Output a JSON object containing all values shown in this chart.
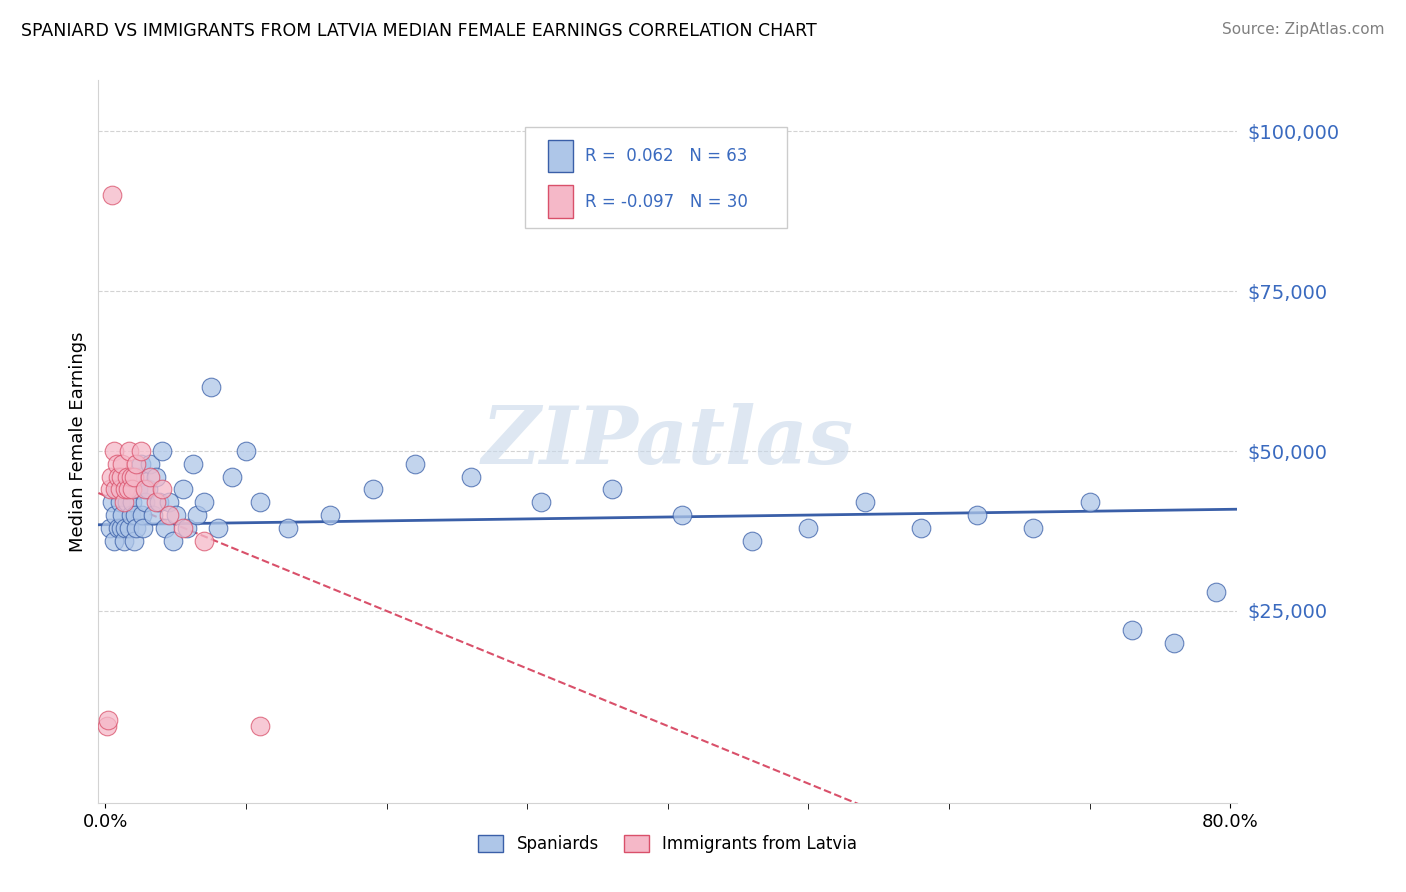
{
  "title": "SPANIARD VS IMMIGRANTS FROM LATVIA MEDIAN FEMALE EARNINGS CORRELATION CHART",
  "source": "Source: ZipAtlas.com",
  "ylabel": "Median Female Earnings",
  "xlim": [
    -0.005,
    0.805
  ],
  "ylim": [
    -5000,
    108000
  ],
  "legend_r_blue": "0.062",
  "legend_n_blue": "63",
  "legend_r_pink": "-0.097",
  "legend_n_pink": "30",
  "blue_color": "#aec6e8",
  "pink_color": "#f5b8c8",
  "blue_line_color": "#3a5fa8",
  "pink_line_color": "#d9506a",
  "watermark": "ZIPatlas",
  "ytick_vals": [
    25000,
    50000,
    75000,
    100000
  ],
  "ytick_labels": [
    "$25,000",
    "$50,000",
    "$75,000",
    "$100,000"
  ],
  "spaniards_x": [
    0.003,
    0.005,
    0.006,
    0.007,
    0.008,
    0.009,
    0.01,
    0.011,
    0.012,
    0.013,
    0.014,
    0.015,
    0.016,
    0.017,
    0.018,
    0.019,
    0.02,
    0.021,
    0.022,
    0.023,
    0.024,
    0.025,
    0.026,
    0.027,
    0.028,
    0.03,
    0.032,
    0.034,
    0.036,
    0.038,
    0.04,
    0.042,
    0.045,
    0.048,
    0.05,
    0.055,
    0.058,
    0.062,
    0.065,
    0.07,
    0.075,
    0.08,
    0.09,
    0.1,
    0.11,
    0.13,
    0.16,
    0.19,
    0.22,
    0.26,
    0.31,
    0.36,
    0.41,
    0.46,
    0.5,
    0.54,
    0.58,
    0.62,
    0.66,
    0.7,
    0.73,
    0.76,
    0.79
  ],
  "spaniards_y": [
    38000,
    42000,
    36000,
    40000,
    44000,
    38000,
    42000,
    38000,
    40000,
    36000,
    38000,
    42000,
    44000,
    38000,
    40000,
    42000,
    36000,
    40000,
    38000,
    44000,
    46000,
    48000,
    40000,
    38000,
    42000,
    44000,
    48000,
    40000,
    46000,
    42000,
    50000,
    38000,
    42000,
    36000,
    40000,
    44000,
    38000,
    48000,
    40000,
    42000,
    60000,
    38000,
    46000,
    50000,
    42000,
    38000,
    40000,
    44000,
    48000,
    46000,
    42000,
    44000,
    40000,
    36000,
    38000,
    42000,
    38000,
    40000,
    38000,
    42000,
    22000,
    20000,
    28000
  ],
  "latvia_x": [
    0.001,
    0.002,
    0.003,
    0.004,
    0.005,
    0.006,
    0.007,
    0.008,
    0.009,
    0.01,
    0.011,
    0.012,
    0.013,
    0.014,
    0.015,
    0.016,
    0.017,
    0.018,
    0.019,
    0.02,
    0.022,
    0.025,
    0.028,
    0.032,
    0.036,
    0.04,
    0.045,
    0.055,
    0.07,
    0.11
  ],
  "latvia_y": [
    7000,
    8000,
    44000,
    46000,
    90000,
    50000,
    44000,
    48000,
    46000,
    44000,
    46000,
    48000,
    42000,
    44000,
    46000,
    44000,
    50000,
    46000,
    44000,
    46000,
    48000,
    50000,
    44000,
    46000,
    42000,
    44000,
    40000,
    38000,
    36000,
    7000
  ]
}
